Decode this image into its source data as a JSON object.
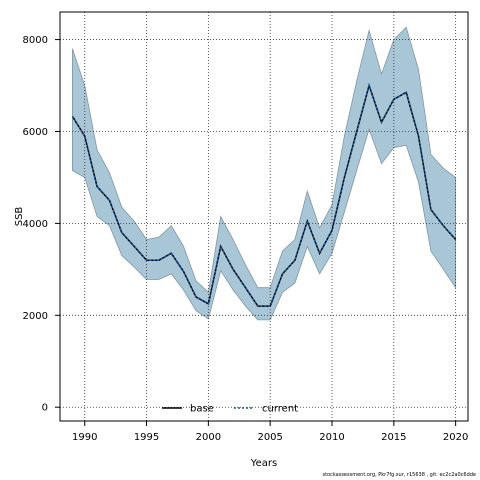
{
  "chart_data": {
    "type": "line",
    "title": "",
    "xlabel": "Years",
    "ylabel": "SSB",
    "xlim": [
      1988,
      2021
    ],
    "ylim": [
      -300,
      8600
    ],
    "xticks": [
      1990,
      1995,
      2000,
      2005,
      2010,
      2015,
      2020
    ],
    "yticks": [
      0,
      2000,
      4000,
      6000,
      8000
    ],
    "grid": true,
    "legend_position": "bottom-center",
    "x": [
      1989,
      1990,
      1991,
      1992,
      1993,
      1994,
      1995,
      1996,
      1997,
      1998,
      1999,
      2000,
      2001,
      2002,
      2003,
      2004,
      2005,
      2006,
      2007,
      2008,
      2009,
      2010,
      2011,
      2012,
      2013,
      2014,
      2015,
      2016,
      2017,
      2018,
      2019,
      2020
    ],
    "series": [
      {
        "name": "base",
        "color": "#000000",
        "style": "solid",
        "values": [
          6330,
          5900,
          4800,
          4500,
          3800,
          3500,
          3200,
          3200,
          3350,
          2950,
          2400,
          2250,
          3500,
          3000,
          2600,
          2200,
          2200,
          2900,
          3200,
          4050,
          3350,
          3850,
          5000,
          6000,
          7000,
          6200,
          6700,
          6850,
          5900,
          4300,
          3950,
          3650
        ]
      },
      {
        "name": "current",
        "color": "#1a5aa0",
        "style": "dotted",
        "values": [
          6330,
          5900,
          4800,
          4500,
          3800,
          3500,
          3200,
          3200,
          3350,
          2950,
          2400,
          2250,
          3500,
          3000,
          2600,
          2200,
          2200,
          2900,
          3200,
          4050,
          3350,
          3850,
          5000,
          6000,
          7000,
          6200,
          6700,
          6850,
          5900,
          4300,
          3950,
          3650
        ]
      }
    ],
    "confidence_band": {
      "color": "#a9c6d6",
      "upper": [
        7800,
        7000,
        5600,
        5100,
        4350,
        4050,
        3650,
        3700,
        3950,
        3500,
        2750,
        2500,
        4150,
        3650,
        3100,
        2600,
        2600,
        3400,
        3650,
        4700,
        3900,
        4400,
        5900,
        7100,
        8200,
        7250,
        8000,
        8270,
        7350,
        5500,
        5200,
        5000
      ],
      "lower": [
        5150,
        5000,
        4150,
        3950,
        3300,
        3050,
        2780,
        2780,
        2900,
        2550,
        2100,
        1920,
        2970,
        2550,
        2200,
        1900,
        1900,
        2500,
        2700,
        3500,
        2900,
        3350,
        4250,
        5150,
        6050,
        5300,
        5650,
        5700,
        4900,
        3400,
        3000,
        2600
      ]
    }
  },
  "footer": {
    "text": "stockassessment.org, Pkr7fg.sur, r15638 , git: ec2c2a0c6dde"
  }
}
